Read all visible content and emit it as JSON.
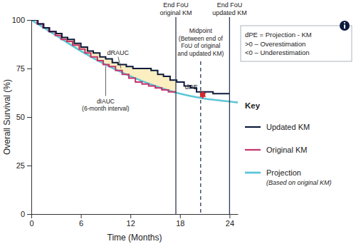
{
  "chart_data": {
    "type": "line",
    "x_label": "Time (Months)",
    "y_label": "Overall Survival (%)",
    "xlim": [
      0,
      25
    ],
    "ylim": [
      0,
      100
    ],
    "xticks": [
      0,
      6,
      12,
      18,
      24
    ],
    "yticks": [
      0,
      25,
      50,
      75,
      100
    ],
    "grid": false,
    "legend": "right",
    "legend_title": "Key",
    "series": [
      {
        "name": "Updated KM",
        "color": "#0d1b3d",
        "line_style": "step",
        "x": [
          0,
          0.8,
          1.5,
          2.2,
          3,
          3.7,
          4.4,
          5.2,
          6,
          6.8,
          7.5,
          8.3,
          9,
          9.8,
          10.5,
          11.5,
          12.3,
          13.5,
          14.5,
          15.3,
          16,
          16.8,
          17.6,
          18.5,
          19.3,
          20,
          21,
          22,
          23,
          24
        ],
        "values": [
          100,
          98,
          96,
          94,
          93,
          91,
          90,
          88,
          86,
          84,
          83,
          81,
          80,
          78,
          77,
          76,
          75,
          75,
          74,
          72,
          71,
          69,
          68,
          66,
          65,
          63,
          63,
          62,
          62,
          62
        ]
      },
      {
        "name": "Original KM",
        "color": "#c7336b",
        "line_style": "step",
        "x": [
          0,
          0.7,
          1.4,
          2.1,
          2.9,
          3.6,
          4.3,
          5,
          5.8,
          6.5,
          7.2,
          8,
          8.7,
          9.4,
          10.2,
          11,
          11.8,
          12.6,
          13.4,
          14.2,
          15,
          15.8,
          16.6,
          17.5
        ],
        "values": [
          100,
          98,
          96,
          94,
          92,
          90,
          89,
          87,
          85,
          83,
          81,
          79,
          77,
          76,
          74,
          72,
          70,
          68,
          67,
          66,
          65,
          64,
          63,
          63
        ]
      },
      {
        "name": "Projection",
        "description": "(Based on original KM)",
        "color": "#5cc6d6",
        "line_style": "solid",
        "x": [
          0,
          3,
          6,
          9,
          12,
          15,
          18,
          21,
          24,
          25
        ],
        "values": [
          100,
          92,
          84,
          77,
          71,
          66,
          62,
          59.5,
          58,
          57.5
        ]
      }
    ],
    "reference_lines": [
      {
        "x": 17.5,
        "label": [
          "End FoU",
          "original KM"
        ],
        "line_style": "solid"
      },
      {
        "x": 20.5,
        "label": [
          "Midpoint",
          "(Between end of",
          "FoU of original",
          "and updated KM)"
        ],
        "line_style": "dashed"
      },
      {
        "x": 24,
        "label": [
          "End FoU",
          "updated KM"
        ],
        "line_style": "solid"
      }
    ],
    "shading": [
      {
        "label": [
          "dRAUC"
        ],
        "between": [
          "Updated KM",
          "Projection"
        ],
        "from": 0,
        "to": 17.5,
        "color": "#fbeec0"
      },
      {
        "label": [
          "dIAUC",
          "(6-month interval)"
        ],
        "between": [
          "Original KM",
          "Projection"
        ],
        "from": 6,
        "to": 12,
        "color": "#dcefc4"
      }
    ],
    "annotations": [
      {
        "text": "dPE",
        "x": 20.5,
        "between": [
          "Updated KM",
          "Projection"
        ],
        "color": "#d62728"
      }
    ],
    "info_box": {
      "lines": [
        "dPE = Projection - KM",
        ">0 – Overestimation",
        "<0 – Underestimation"
      ]
    }
  }
}
